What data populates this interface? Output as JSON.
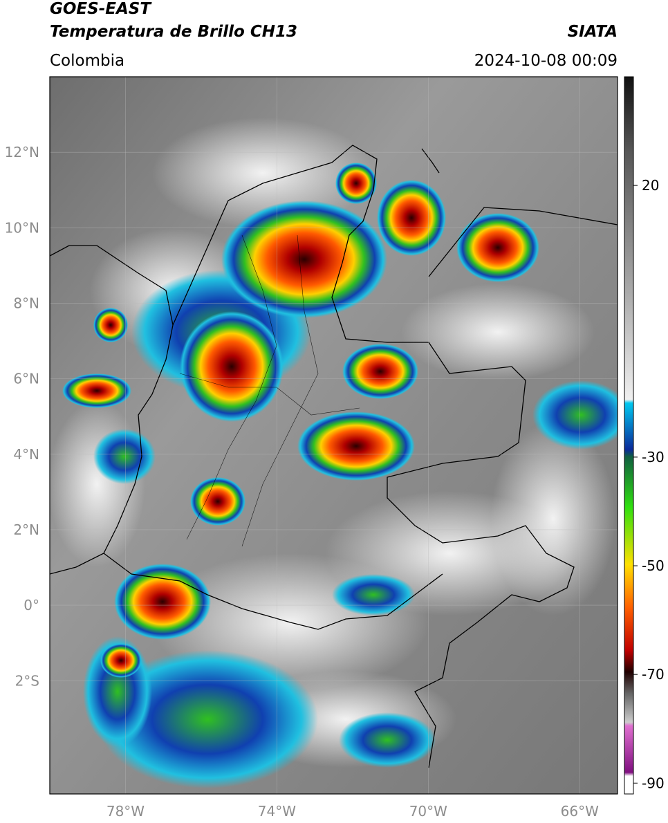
{
  "header": {
    "satellite": "GOES-EAST",
    "product": "Temperatura de Brillo CH13",
    "source": "SIATA",
    "region": "Colombia",
    "datetime": "2024-10-08 00:09"
  },
  "map": {
    "lonlim": [
      -80,
      -65
    ],
    "latlim": [
      -5,
      14
    ],
    "grid": true,
    "lonticks": [
      {
        "value": -78,
        "label": "78°W"
      },
      {
        "value": -74,
        "label": "74°W"
      },
      {
        "value": -70,
        "label": "70°W"
      },
      {
        "value": -66,
        "label": "66°W"
      }
    ],
    "latticks": [
      {
        "value": 12,
        "label": "12°N"
      },
      {
        "value": 10,
        "label": "10°N"
      },
      {
        "value": 8,
        "label": "8°N"
      },
      {
        "value": 6,
        "label": "6°N"
      },
      {
        "value": 4,
        "label": "4°N"
      },
      {
        "value": 2,
        "label": "2°N"
      },
      {
        "value": 0,
        "label": "0°"
      },
      {
        "value": -2,
        "label": "2°S"
      }
    ]
  },
  "colorbar": {
    "lim": [
      -92,
      40
    ],
    "ticks": [
      20,
      -30,
      -50,
      -70,
      -90
    ]
  }
}
